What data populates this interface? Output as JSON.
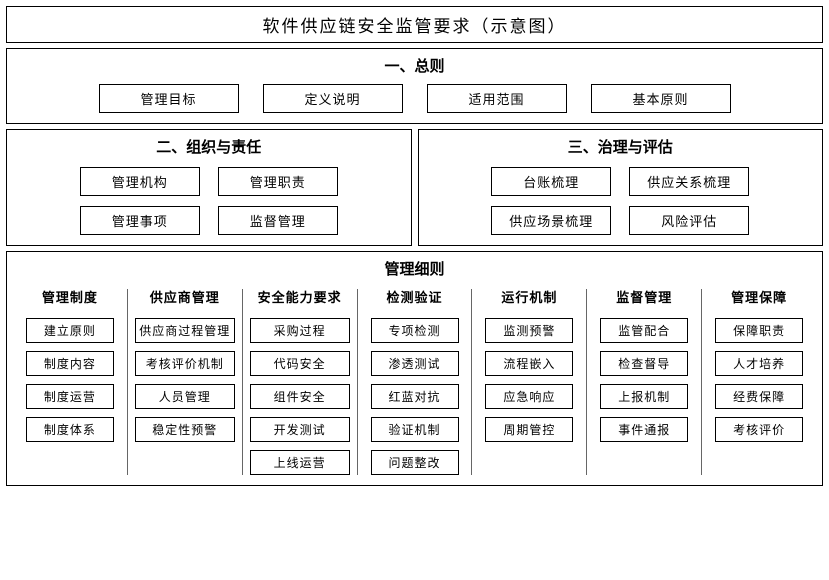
{
  "title": "软件供应链安全监管要求（示意图）",
  "section1": {
    "title": "一、总则",
    "items": [
      "管理目标",
      "定义说明",
      "适用范围",
      "基本原则"
    ]
  },
  "section2": {
    "title": "二、组织与责任",
    "items": [
      "管理机构",
      "管理职责",
      "管理事项",
      "监督管理"
    ]
  },
  "section3": {
    "title": "三、治理与评估",
    "items": [
      "台账梳理",
      "供应关系梳理",
      "供应场景梳理",
      "风险评估"
    ]
  },
  "detail": {
    "title": "管理细则",
    "cols": [
      {
        "title": "管理制度",
        "items": [
          "建立原则",
          "制度内容",
          "制度运营",
          "制度体系"
        ]
      },
      {
        "title": "供应商管理",
        "items": [
          "供应商过程管理",
          "考核评价机制",
          "人员管理",
          "稳定性预警"
        ]
      },
      {
        "title": "安全能力要求",
        "items": [
          "采购过程",
          "代码安全",
          "组件安全",
          "开发测试",
          "上线运营"
        ]
      },
      {
        "title": "检测验证",
        "items": [
          "专项检测",
          "渗透测试",
          "红蓝对抗",
          "验证机制",
          "问题整改"
        ]
      },
      {
        "title": "运行机制",
        "items": [
          "监测预警",
          "流程嵌入",
          "应急响应",
          "周期管控"
        ]
      },
      {
        "title": "监督管理",
        "items": [
          "监管配合",
          "检查督导",
          "上报机制",
          "事件通报"
        ]
      },
      {
        "title": "管理保障",
        "items": [
          "保障职责",
          "人才培养",
          "经费保障",
          "考核评价"
        ]
      }
    ]
  },
  "style": {
    "border_color": "#000000",
    "background": "#ffffff",
    "title_fontsize": 17,
    "section_title_fontsize": 15,
    "item_fontsize": 13,
    "small_item_fontsize": 12
  }
}
